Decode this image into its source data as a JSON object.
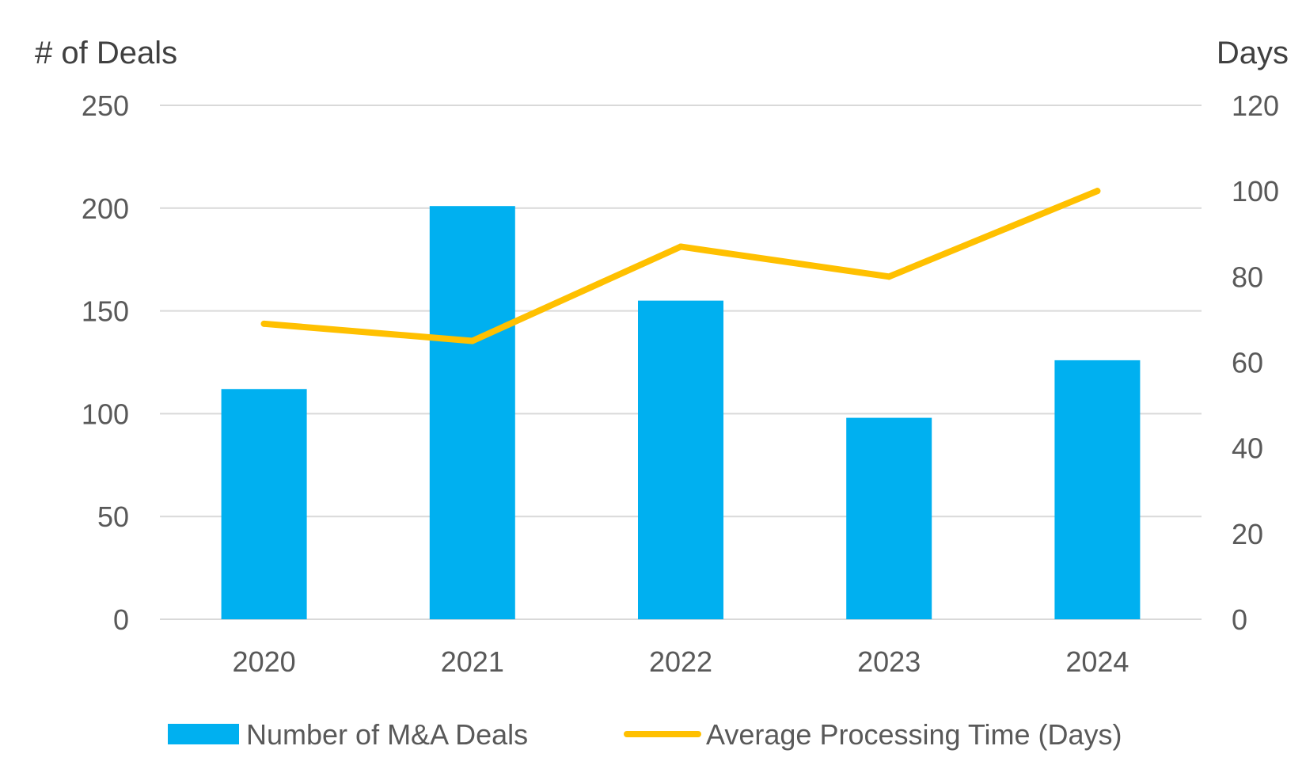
{
  "chart_data": {
    "type": "bar",
    "categories": [
      "2020",
      "2021",
      "2022",
      "2023",
      "2024"
    ],
    "series": [
      {
        "name": "Number of M&A Deals",
        "type": "bar",
        "axis": "left",
        "color": "#00B0F0",
        "values": [
          112,
          201,
          155,
          98,
          126
        ]
      },
      {
        "name": "Average Processing Time (Days)",
        "type": "line",
        "axis": "right",
        "color": "#FFC000",
        "values": [
          69,
          65,
          87,
          80,
          100
        ]
      }
    ],
    "ylabel": "# of Deals",
    "y2label": "Days",
    "ylim": [
      0,
      250
    ],
    "y2lim": [
      0,
      120
    ],
    "yticks": [
      "0",
      "50",
      "100",
      "150",
      "200",
      "250"
    ],
    "y2ticks": [
      "0",
      "20",
      "40",
      "60",
      "80",
      "100",
      "120"
    ],
    "grid": true,
    "legend_position": "bottom"
  }
}
